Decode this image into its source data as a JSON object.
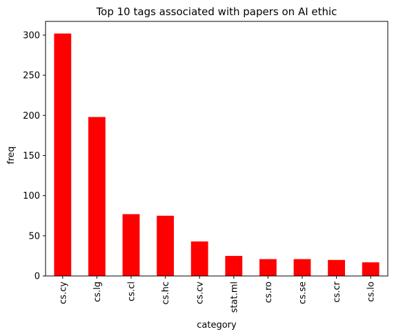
{
  "chart_data": {
    "type": "bar",
    "title": "Top 10 tags associated with papers on AI ethic",
    "xlabel": "category",
    "ylabel": "freq",
    "categories": [
      "cs.cy",
      "cs.lg",
      "cs.cl",
      "cs.hc",
      "cs.cv",
      "stat.ml",
      "cs.ro",
      "cs.se",
      "cs.cr",
      "cs.lo"
    ],
    "values": [
      302,
      198,
      77,
      75,
      43,
      25,
      21,
      21,
      20,
      17
    ],
    "ylim": [
      0,
      317.1
    ],
    "yticks": [
      0,
      50,
      100,
      150,
      200,
      250,
      300
    ],
    "bar_color": "#ff0000",
    "grid": false,
    "legend": "none"
  }
}
